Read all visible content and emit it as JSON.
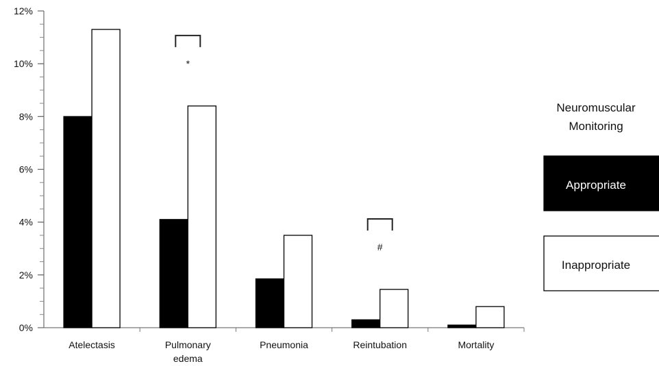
{
  "chart_data": {
    "type": "bar",
    "categories": [
      [
        "Atelectasis"
      ],
      [
        "Pulmonary",
        "edema"
      ],
      [
        "Pneumonia"
      ],
      [
        "Reintubation"
      ],
      [
        "Mortality"
      ]
    ],
    "series": [
      {
        "name": "Appropriate",
        "values": [
          8.0,
          4.1,
          1.85,
          0.3,
          0.1
        ],
        "color": "#000000"
      },
      {
        "name": "Inappropriate",
        "values": [
          11.3,
          8.4,
          3.5,
          1.45,
          0.8
        ],
        "color": "#ffffff"
      }
    ],
    "ylim": [
      0,
      12
    ],
    "yticks": [
      0,
      2,
      4,
      6,
      8,
      10,
      12
    ],
    "ytick_labels": [
      "0%",
      "2%",
      "4%",
      "6%",
      "8%",
      "10%",
      "12%"
    ],
    "ytick_minor_step": 0.5,
    "legend": {
      "title_lines": [
        "Neuromuscular",
        "Monitoring"
      ],
      "placement": "right"
    },
    "annotations": [
      {
        "category_index": 1,
        "symbol": "*"
      },
      {
        "category_index": 3,
        "symbol": "#"
      }
    ],
    "grid": false
  }
}
